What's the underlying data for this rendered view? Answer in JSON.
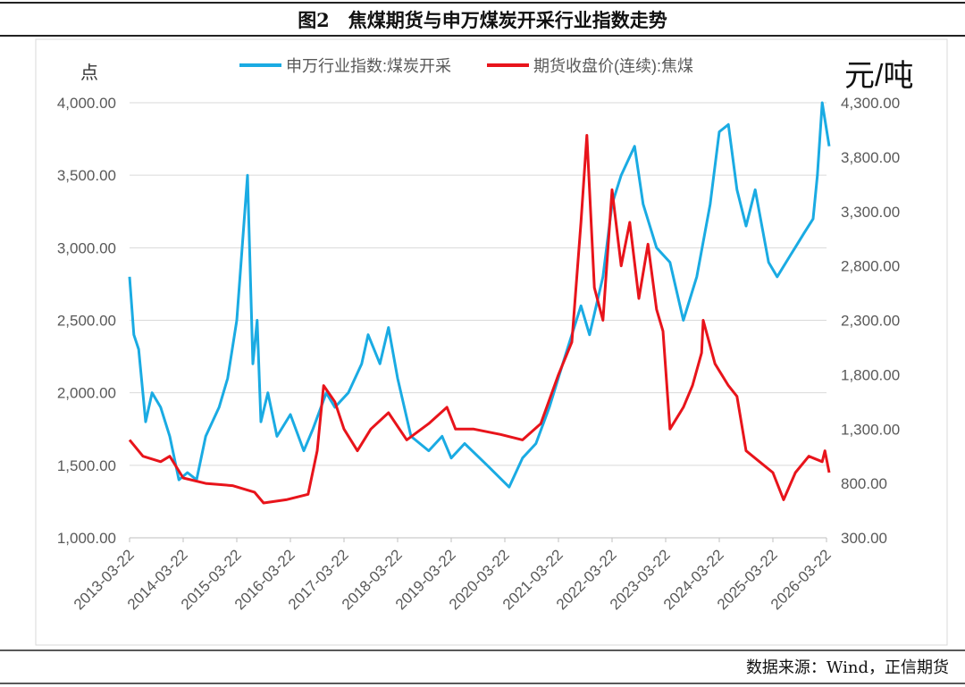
{
  "title": "图2　焦煤期货与申万煤炭开采行业指数走势",
  "source": "数据来源：Wind，正信期货",
  "chart_data": {
    "type": "line",
    "title": "图2　焦煤期货与申万煤炭开采行业指数走势",
    "ylabel_left": "点",
    "ylabel_right": "元/吨",
    "ylim_left": [
      1000,
      4000
    ],
    "ylim_right": [
      300,
      4300
    ],
    "xlim": [
      2013.22,
      2026.22
    ],
    "yticks_left": [
      "1,000.00",
      "1,500.00",
      "2,000.00",
      "2,500.00",
      "3,000.00",
      "3,500.00",
      "4,000.00"
    ],
    "yticks_right": [
      "300.00",
      "800.00",
      "1,300.00",
      "1,800.00",
      "2,300.00",
      "2,800.00",
      "3,300.00",
      "3,800.00",
      "4,300.00"
    ],
    "xticks": [
      "2013-03-22",
      "2014-03-22",
      "2015-03-22",
      "2016-03-22",
      "2017-03-22",
      "2018-03-22",
      "2019-03-22",
      "2020-03-22",
      "2021-03-22",
      "2022-03-22",
      "2023-03-22",
      "2024-03-22",
      "2025-03-22",
      "2026-03-22"
    ],
    "grid": "horizontal",
    "legend_position": "top-center",
    "series": [
      {
        "name": "申万行业指数:煤炭开采",
        "axis": "left",
        "color": "#1AABE3",
        "points": [
          [
            2013.22,
            2800
          ],
          [
            2013.3,
            2400
          ],
          [
            2013.39,
            2300
          ],
          [
            2013.52,
            1800
          ],
          [
            2013.64,
            2000
          ],
          [
            2013.8,
            1900
          ],
          [
            2013.97,
            1700
          ],
          [
            2014.14,
            1400
          ],
          [
            2014.3,
            1450
          ],
          [
            2014.47,
            1400
          ],
          [
            2014.64,
            1700
          ],
          [
            2014.89,
            1900
          ],
          [
            2015.05,
            2100
          ],
          [
            2015.22,
            2500
          ],
          [
            2015.3,
            2900
          ],
          [
            2015.42,
            3500
          ],
          [
            2015.52,
            2200
          ],
          [
            2015.6,
            2500
          ],
          [
            2015.67,
            1800
          ],
          [
            2015.8,
            2000
          ],
          [
            2015.97,
            1700
          ],
          [
            2016.22,
            1850
          ],
          [
            2016.47,
            1600
          ],
          [
            2016.64,
            1750
          ],
          [
            2016.89,
            2000
          ],
          [
            2017.05,
            1900
          ],
          [
            2017.3,
            2000
          ],
          [
            2017.55,
            2200
          ],
          [
            2017.67,
            2400
          ],
          [
            2017.89,
            2200
          ],
          [
            2018.05,
            2450
          ],
          [
            2018.22,
            2100
          ],
          [
            2018.47,
            1700
          ],
          [
            2018.8,
            1600
          ],
          [
            2019.05,
            1700
          ],
          [
            2019.22,
            1550
          ],
          [
            2019.47,
            1650
          ],
          [
            2019.89,
            1500
          ],
          [
            2020.3,
            1350
          ],
          [
            2020.55,
            1550
          ],
          [
            2020.8,
            1650
          ],
          [
            2021.05,
            1900
          ],
          [
            2021.3,
            2200
          ],
          [
            2021.64,
            2600
          ],
          [
            2021.8,
            2400
          ],
          [
            2022.05,
            2800
          ],
          [
            2022.22,
            3300
          ],
          [
            2022.39,
            3500
          ],
          [
            2022.64,
            3700
          ],
          [
            2022.8,
            3300
          ],
          [
            2023.05,
            3000
          ],
          [
            2023.3,
            2900
          ],
          [
            2023.55,
            2500
          ],
          [
            2023.8,
            2800
          ],
          [
            2024.05,
            3300
          ],
          [
            2024.22,
            3800
          ],
          [
            2024.39,
            3850
          ],
          [
            2024.55,
            3400
          ],
          [
            2024.72,
            3150
          ],
          [
            2024.89,
            3400
          ],
          [
            2025.14,
            2900
          ],
          [
            2025.3,
            2800
          ],
          [
            2025.55,
            2950
          ],
          [
            2025.8,
            3100
          ],
          [
            2025.97,
            3200
          ],
          [
            2026.05,
            3500
          ],
          [
            2026.14,
            4000
          ],
          [
            2026.27,
            3700
          ]
        ]
      },
      {
        "name": "期货收盘价(连续):焦煤",
        "axis": "right",
        "color": "#E8141B",
        "points": [
          [
            2013.22,
            1200
          ],
          [
            2013.47,
            1050
          ],
          [
            2013.8,
            1000
          ],
          [
            2013.97,
            1050
          ],
          [
            2014.22,
            850
          ],
          [
            2014.64,
            800
          ],
          [
            2015.14,
            780
          ],
          [
            2015.55,
            720
          ],
          [
            2015.72,
            620
          ],
          [
            2016.14,
            650
          ],
          [
            2016.55,
            700
          ],
          [
            2016.72,
            1100
          ],
          [
            2016.84,
            1700
          ],
          [
            2017.05,
            1550
          ],
          [
            2017.22,
            1300
          ],
          [
            2017.47,
            1100
          ],
          [
            2017.72,
            1300
          ],
          [
            2018.05,
            1450
          ],
          [
            2018.39,
            1200
          ],
          [
            2018.8,
            1350
          ],
          [
            2019.14,
            1500
          ],
          [
            2019.3,
            1300
          ],
          [
            2019.64,
            1300
          ],
          [
            2020.14,
            1250
          ],
          [
            2020.55,
            1200
          ],
          [
            2020.89,
            1350
          ],
          [
            2021.22,
            1800
          ],
          [
            2021.47,
            2100
          ],
          [
            2021.64,
            3200
          ],
          [
            2021.75,
            4000
          ],
          [
            2021.89,
            2600
          ],
          [
            2022.05,
            2300
          ],
          [
            2022.22,
            3500
          ],
          [
            2022.39,
            2800
          ],
          [
            2022.55,
            3200
          ],
          [
            2022.72,
            2500
          ],
          [
            2022.89,
            3000
          ],
          [
            2023.05,
            2400
          ],
          [
            2023.17,
            2200
          ],
          [
            2023.3,
            1300
          ],
          [
            2023.55,
            1500
          ],
          [
            2023.72,
            1700
          ],
          [
            2023.89,
            2000
          ],
          [
            2023.92,
            2300
          ],
          [
            2024.14,
            1900
          ],
          [
            2024.39,
            1700
          ],
          [
            2024.55,
            1600
          ],
          [
            2024.72,
            1100
          ],
          [
            2024.97,
            1000
          ],
          [
            2025.22,
            900
          ],
          [
            2025.42,
            650
          ],
          [
            2025.64,
            900
          ],
          [
            2025.89,
            1050
          ],
          [
            2026.14,
            1000
          ],
          [
            2026.19,
            1100
          ],
          [
            2026.27,
            900
          ]
        ]
      }
    ]
  }
}
